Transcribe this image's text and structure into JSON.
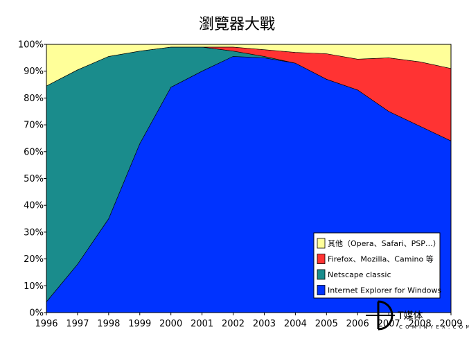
{
  "chart_data": {
    "type": "area",
    "stacked": true,
    "title": "瀏覽器大戰",
    "x": [
      1996,
      1997,
      1998,
      1999,
      2000,
      2001,
      2002,
      2003,
      2004,
      2005,
      2006,
      2007,
      2008,
      2009
    ],
    "x_tick_labels": [
      "1996",
      "1997",
      "1998",
      "1999",
      "2000",
      "2001",
      "2002",
      "2003",
      "2004",
      "2005",
      "2006",
      "2007",
      "2008",
      "2009"
    ],
    "y_tick_labels": [
      "0%",
      "10%",
      "20%",
      "30%",
      "40%",
      "50%",
      "60%",
      "70%",
      "80%",
      "90%",
      "100%"
    ],
    "ylim": [
      0,
      100
    ],
    "series": [
      {
        "name": "Internet Explorer for Windows",
        "color": "#0033ff",
        "values": [
          4,
          18,
          35,
          63,
          84,
          90,
          95.5,
          95,
          93,
          87,
          83,
          75,
          69.5,
          64
        ]
      },
      {
        "name": "Netscape classic",
        "color": "#1a8c8c",
        "values": [
          80.5,
          72.5,
          60.5,
          34.5,
          15,
          9,
          2,
          0.5,
          0,
          0,
          0,
          0,
          0,
          0
        ]
      },
      {
        "name": "Firefox、Mozilla、Camino 等",
        "color": "#ff3333",
        "values": [
          0,
          0,
          0,
          0,
          0,
          0,
          1.5,
          2.5,
          4,
          9.5,
          11.5,
          20,
          24,
          27
        ]
      },
      {
        "name": "其他（Opera、Safari、PSP…）",
        "color": "#ffff99",
        "values": [
          15.5,
          9.5,
          4.5,
          2.5,
          1,
          1,
          1,
          2,
          3,
          3.5,
          5.5,
          5,
          6.5,
          9
        ]
      }
    ],
    "legend_order": [
      "其他（Opera、Safari、PSP…）",
      "Firefox、Mozilla、Camino 等",
      "Netscape classic",
      "Internet Explorer for Windows"
    ],
    "legend_position": "bottom-right",
    "grid": false
  },
  "watermark": {
    "text": "T媒体",
    "small": "C O M I N Y E X . C O M"
  }
}
